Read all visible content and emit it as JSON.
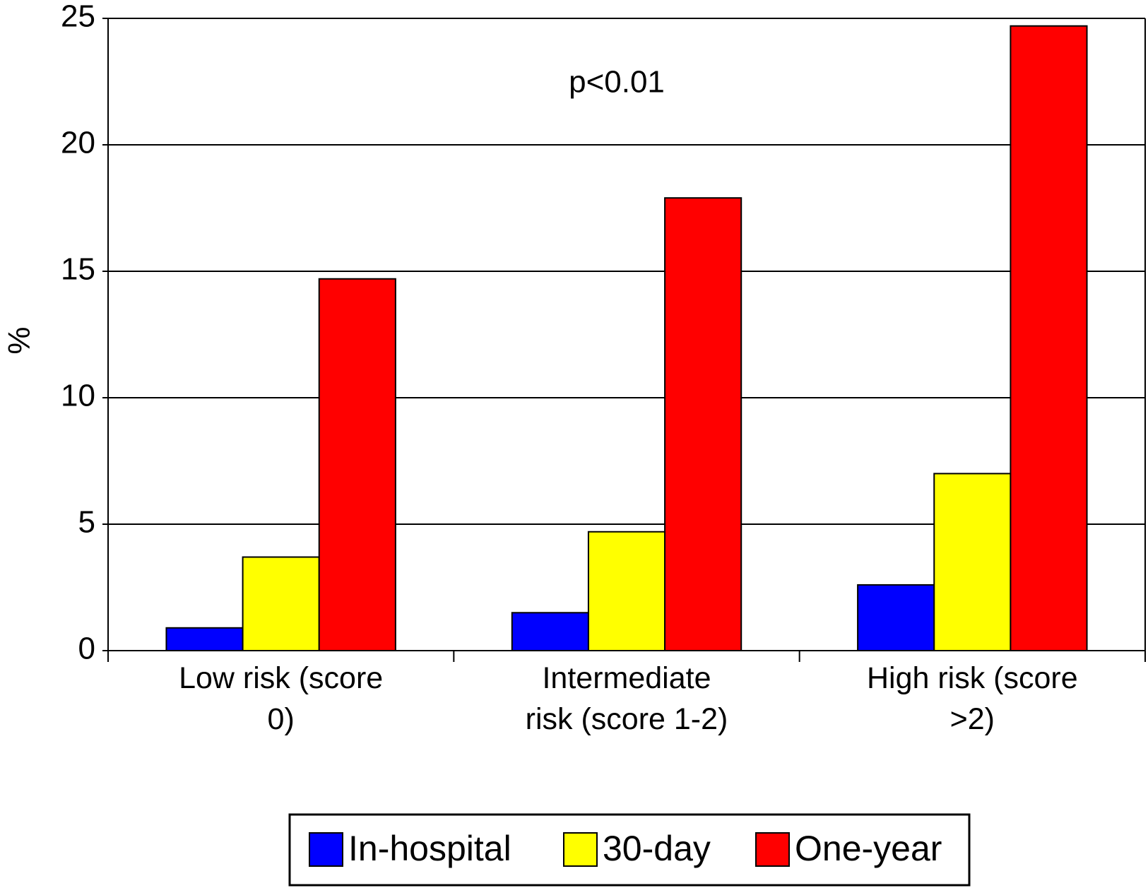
{
  "chart_data": {
    "type": "bar",
    "y_label": "%",
    "annotation": "p<0.01",
    "categories": [
      "Low risk (score 0)",
      "Intermediate risk (score 1-2)",
      "High risk (score >2)"
    ],
    "series": [
      {
        "name": "In-hospital",
        "color": "#0000ff",
        "values": [
          0.9,
          1.5,
          2.6
        ]
      },
      {
        "name": "30-day",
        "color": "#ffff00",
        "values": [
          3.7,
          4.7,
          7.0
        ]
      },
      {
        "name": "One-year",
        "color": "#ff0000",
        "values": [
          14.7,
          17.9,
          24.7
        ]
      }
    ],
    "ylim": [
      0,
      25
    ],
    "yticks": [
      0,
      5,
      10,
      15,
      20,
      25
    ],
    "grid": true,
    "legend": "bottom"
  }
}
